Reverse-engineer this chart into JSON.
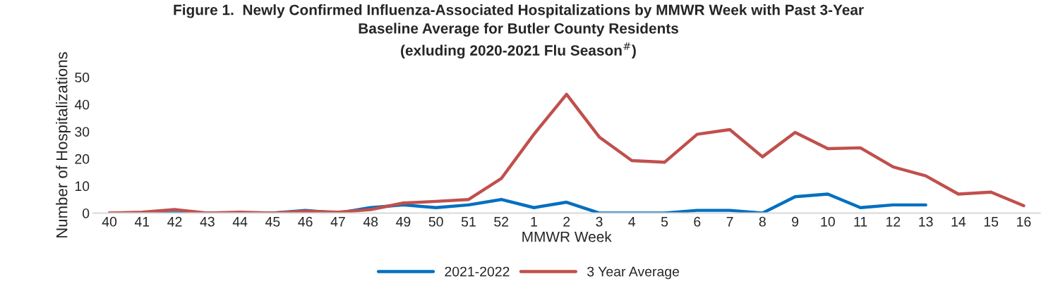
{
  "chart_data": {
    "type": "line",
    "title": "Figure 1.  Newly Confirmed Influenza-Associated Hospitalizations by MMWR Week with Past 3-Year\nBaseline Average for Butler County Residents\n(exluding 2020-2021 Flu Season$^{#}$)",
    "xlabel": "MMWR Week",
    "ylabel": "Number of Hospitalizations",
    "categories": [
      "40",
      "41",
      "42",
      "43",
      "44",
      "45",
      "46",
      "47",
      "48",
      "49",
      "50",
      "51",
      "52",
      "1",
      "2",
      "3",
      "4",
      "5",
      "6",
      "7",
      "8",
      "9",
      "10",
      "11",
      "12",
      "13",
      "14",
      "15",
      "16"
    ],
    "series": [
      {
        "name": "2021-2022",
        "color": "#0070c0",
        "values": [
          0,
          0,
          0,
          0,
          0,
          0,
          1,
          0,
          2,
          3,
          2,
          3,
          5,
          2,
          4,
          0,
          0,
          0,
          1,
          1,
          0,
          6,
          7,
          2,
          3,
          3,
          null,
          null,
          null
        ]
      },
      {
        "name": "3 Year Average",
        "color": "#c0504d",
        "values": [
          0,
          0.3,
          1.3,
          0,
          0.3,
          0,
          0.7,
          0.3,
          1.3,
          3.7,
          4.3,
          5,
          12.7,
          29,
          43.7,
          28,
          19.3,
          18.7,
          29,
          30.7,
          20.7,
          29.7,
          23.7,
          24,
          17,
          13.7,
          7,
          7.7,
          2.7
        ]
      }
    ],
    "ylim": [
      0,
      50
    ],
    "yticks": [
      0,
      10,
      20,
      30,
      40,
      50
    ],
    "grid": false,
    "legend": "bottom",
    "marker": "none",
    "line_style": "solid"
  }
}
